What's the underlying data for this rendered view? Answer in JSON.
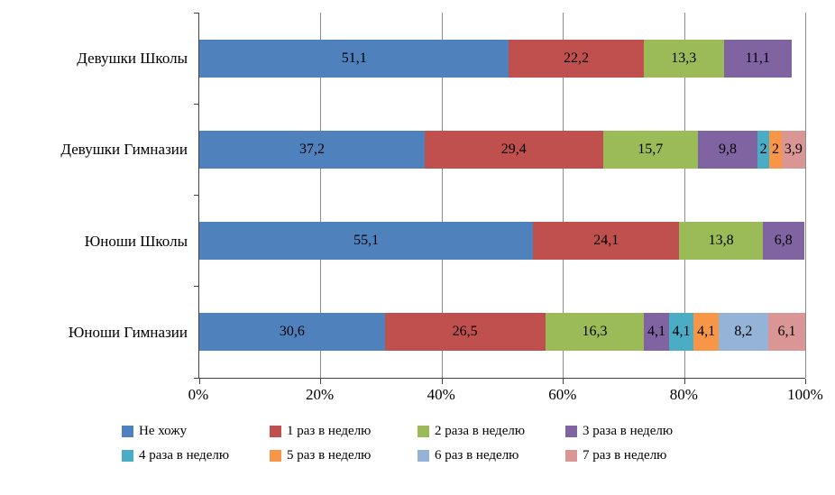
{
  "chart_data": {
    "type": "bar",
    "orientation": "horizontal",
    "stacked": true,
    "title": "",
    "xlabel": "",
    "ylabel": "",
    "xlim": [
      0,
      100
    ],
    "grid": true,
    "legend_position": "bottom",
    "x_ticks": [
      "0%",
      "20%",
      "40%",
      "60%",
      "80%",
      "100%"
    ],
    "categories": [
      "Девушки Школы",
      "Девушки Гимназии",
      "Юноши Школы",
      "Юноши Гимназии"
    ],
    "series": [
      {
        "name": "Не хожу",
        "color": "#4F81BD",
        "values": [
          51.1,
          37.2,
          55.1,
          30.6
        ],
        "labels": [
          "51,1",
          "37,2",
          "55,1",
          "30,6"
        ]
      },
      {
        "name": "1 раз в неделю",
        "color": "#C0504D",
        "values": [
          22.2,
          29.4,
          24.1,
          26.5
        ],
        "labels": [
          "22,2",
          "29,4",
          "24,1",
          "26,5"
        ]
      },
      {
        "name": "2 раза в неделю",
        "color": "#9BBB59",
        "values": [
          13.3,
          15.7,
          13.8,
          16.3
        ],
        "labels": [
          "13,3",
          "15,7",
          "13,8",
          "16,3"
        ]
      },
      {
        "name": "3 раза в неделю",
        "color": "#8064A2",
        "values": [
          11.1,
          9.8,
          6.8,
          4.1
        ],
        "labels": [
          "11,1",
          "9,8",
          "6,8",
          "4,1"
        ]
      },
      {
        "name": "4 раза в неделю",
        "color": "#4BACC6",
        "values": [
          0,
          2,
          0,
          4.1
        ],
        "labels": [
          "",
          "2",
          "",
          "4,1"
        ]
      },
      {
        "name": "5 раз в неделю",
        "color": "#F79646",
        "values": [
          0,
          2,
          0,
          4.1
        ],
        "labels": [
          "",
          "2",
          "",
          "4,1"
        ]
      },
      {
        "name": "6 раз в неделю",
        "color": "#95B3D7",
        "values": [
          0,
          0,
          0,
          8.2
        ],
        "labels": [
          "",
          "",
          "",
          "8,2"
        ]
      },
      {
        "name": "7 раз в неделю",
        "color": "#D99694",
        "values": [
          0,
          3.9,
          0,
          6.1
        ],
        "labels": [
          "",
          "3,9",
          "",
          "6,1"
        ]
      }
    ]
  }
}
